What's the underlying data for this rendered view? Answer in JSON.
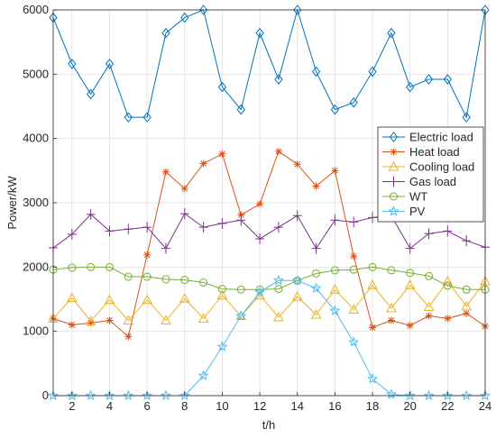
{
  "chart_data": {
    "type": "line",
    "xlabel": "t/h",
    "ylabel": "Power/kW",
    "xlim": [
      1,
      24
    ],
    "ylim": [
      0,
      6000
    ],
    "xticks": [
      2,
      4,
      6,
      8,
      10,
      12,
      14,
      16,
      18,
      20,
      22,
      24
    ],
    "yticks": [
      0,
      1000,
      2000,
      3000,
      4000,
      5000,
      6000
    ],
    "grid": true,
    "legend_position": "right",
    "x": [
      1,
      2,
      3,
      4,
      5,
      6,
      7,
      8,
      9,
      10,
      11,
      12,
      13,
      14,
      15,
      16,
      17,
      18,
      19,
      20,
      21,
      22,
      23,
      24
    ],
    "series": [
      {
        "name": "Electric load",
        "color": "#0072BD",
        "marker": "diamond",
        "values": [
          5880,
          5160,
          4690,
          5160,
          4330,
          4330,
          5640,
          5880,
          6000,
          4800,
          4450,
          5640,
          4920,
          6000,
          5040,
          4450,
          4560,
          5040,
          5640,
          4800,
          4920,
          4920,
          4330,
          6000
        ]
      },
      {
        "name": "Heat load",
        "color": "#D95319",
        "marker": "asterisk",
        "values": [
          1200,
          1100,
          1130,
          1170,
          920,
          2190,
          3480,
          3220,
          3610,
          3760,
          2810,
          2980,
          3800,
          3600,
          3260,
          3500,
          2170,
          1060,
          1170,
          1090,
          1240,
          1200,
          1280,
          1080
        ]
      },
      {
        "name": "Cooling load",
        "color": "#EDB120",
        "marker": "triangle",
        "values": [
          1200,
          1520,
          1160,
          1490,
          1170,
          1490,
          1170,
          1510,
          1200,
          1560,
          1240,
          1560,
          1220,
          1540,
          1260,
          1650,
          1340,
          1720,
          1360,
          1720,
          1380,
          1780,
          1390,
          1780
        ]
      },
      {
        "name": "Gas load",
        "color": "#7E2F8E",
        "marker": "plus",
        "values": [
          2300,
          2510,
          2820,
          2560,
          2590,
          2620,
          2290,
          2830,
          2620,
          2680,
          2730,
          2440,
          2620,
          2800,
          2290,
          2730,
          2700,
          2770,
          2800,
          2290,
          2520,
          2560,
          2410,
          2310
        ]
      },
      {
        "name": "WT",
        "color": "#77AC30",
        "marker": "circle",
        "values": [
          1960,
          1990,
          2000,
          2000,
          1850,
          1850,
          1810,
          1800,
          1760,
          1660,
          1650,
          1650,
          1660,
          1790,
          1900,
          1950,
          1960,
          2000,
          1950,
          1910,
          1860,
          1710,
          1650,
          1650
        ]
      },
      {
        "name": "PV",
        "color": "#4DBEEE",
        "marker": "star",
        "values": [
          0,
          0,
          0,
          0,
          0,
          0,
          0,
          0,
          310,
          760,
          1240,
          1610,
          1790,
          1790,
          1670,
          1320,
          830,
          260,
          20,
          0,
          0,
          0,
          0,
          0
        ]
      }
    ]
  }
}
